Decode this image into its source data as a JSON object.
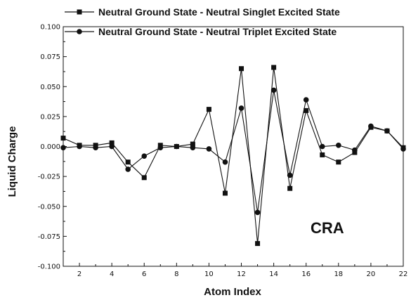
{
  "chart_data": {
    "type": "line",
    "xlabel": "Atom Index",
    "ylabel": "Liquid Charge",
    "xlim": [
      1,
      22
    ],
    "ylim": [
      -0.1,
      0.1
    ],
    "x_ticks": [
      2,
      4,
      6,
      8,
      10,
      12,
      14,
      16,
      18,
      20,
      22
    ],
    "y_ticks": [
      -0.1,
      -0.075,
      -0.05,
      -0.025,
      0.0,
      0.025,
      0.05,
      0.075,
      0.1
    ],
    "y_tick_labels": [
      "-0.100",
      "-0.075",
      "-0.050",
      "-0.025",
      "0.000",
      "0.025",
      "0.050",
      "0.075",
      "0.100"
    ],
    "x_tick_labels": [
      "2",
      "4",
      "6",
      "8",
      "10",
      "12",
      "14",
      "16",
      "18",
      "20",
      "22"
    ],
    "grid": false,
    "legend_position": "top",
    "annotation": "CRA",
    "x": [
      1,
      2,
      3,
      4,
      5,
      6,
      7,
      8,
      9,
      10,
      11,
      12,
      13,
      14,
      15,
      16,
      17,
      18,
      19,
      20,
      21,
      22
    ],
    "series": [
      {
        "name": "Neutral Ground State - Neutral Singlet Excited State",
        "marker": "square",
        "values": [
          0.007,
          0.001,
          0.001,
          0.003,
          -0.013,
          -0.026,
          0.001,
          0.0,
          0.002,
          0.031,
          -0.039,
          0.065,
          -0.081,
          0.066,
          -0.035,
          0.03,
          -0.007,
          -0.013,
          -0.005,
          0.016,
          0.013,
          -0.001
        ]
      },
      {
        "name": "Neutral Ground State - Neutral Triplet Excited State",
        "marker": "circle",
        "values": [
          -0.001,
          0.0,
          -0.001,
          0.0,
          -0.019,
          -0.008,
          -0.001,
          0.0,
          -0.001,
          -0.002,
          -0.013,
          0.032,
          -0.055,
          0.047,
          -0.024,
          0.039,
          0.0,
          0.001,
          -0.003,
          0.017,
          0.013,
          -0.002
        ]
      }
    ]
  }
}
